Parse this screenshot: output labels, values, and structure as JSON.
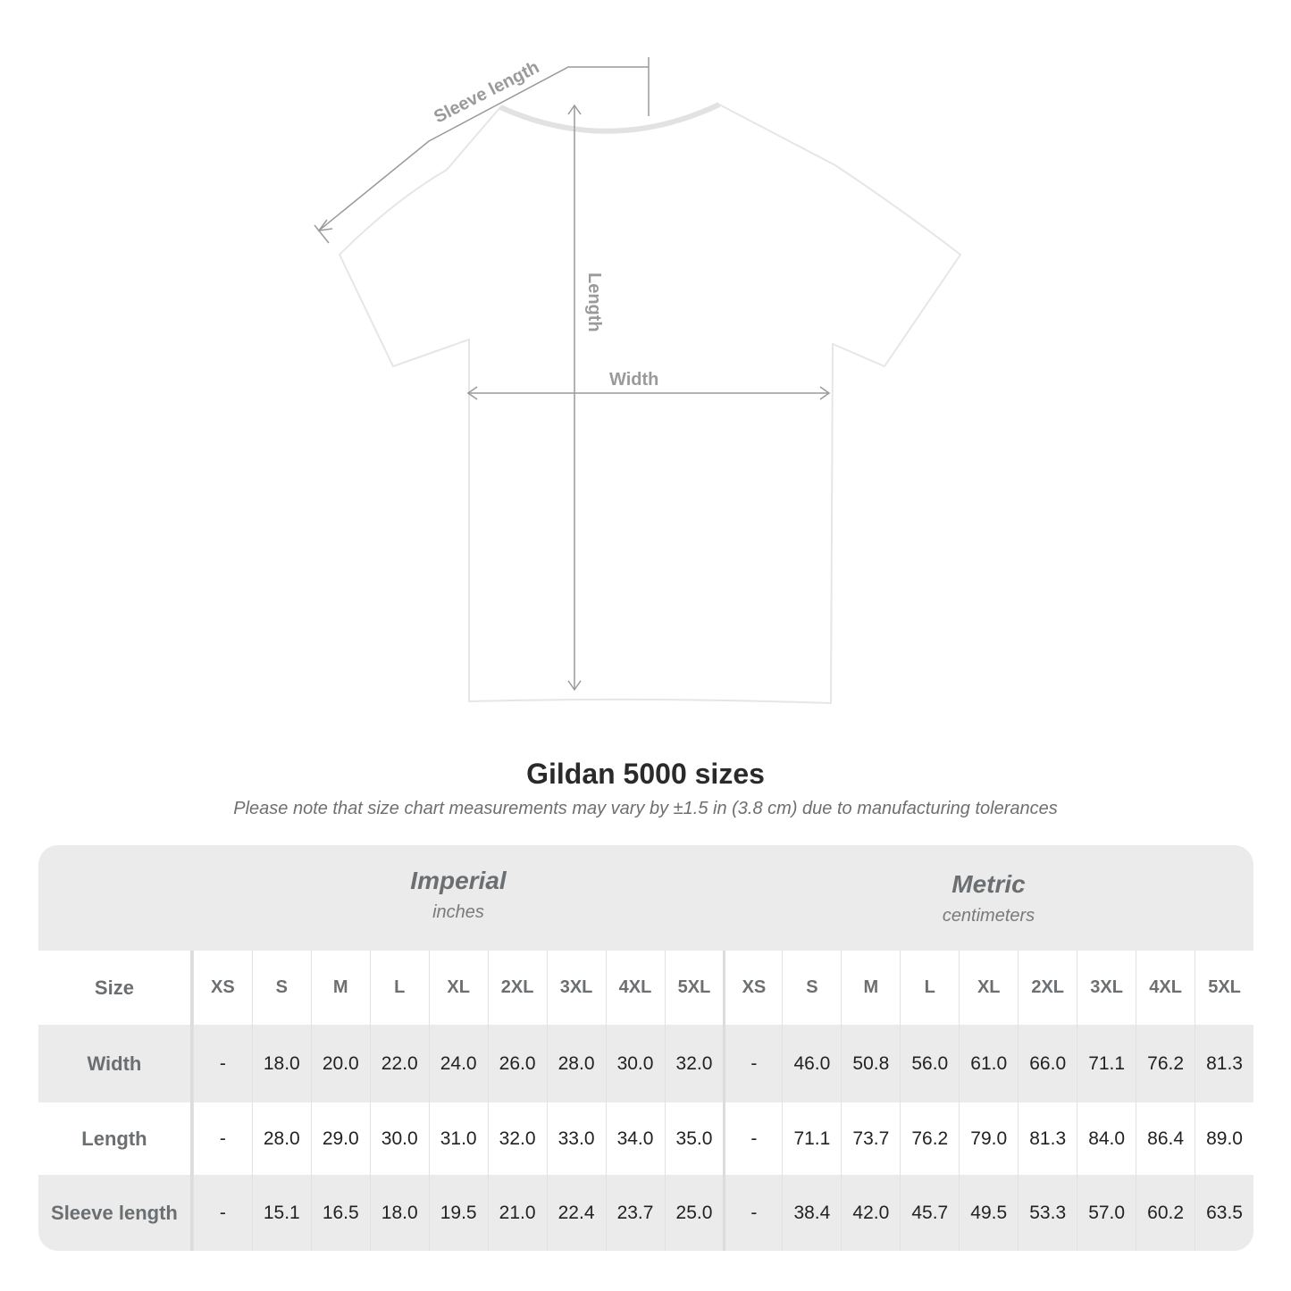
{
  "diagram": {
    "labels": {
      "sleeve": "Sleeve length",
      "length": "Length",
      "width": "Width"
    },
    "shirt_color": "#ffffff",
    "line_color": "#9a9a9a"
  },
  "title": "Gildan 5000 sizes",
  "subtitle": "Please note that size chart measurements may vary by ±1.5 in (3.8 cm) due to manufacturing tolerances",
  "table": {
    "imperial": {
      "name": "Imperial",
      "unit": "inches"
    },
    "metric": {
      "name": "Metric",
      "unit": "centimeters"
    },
    "size_label": "Size",
    "sizes": [
      "XS",
      "S",
      "M",
      "L",
      "XL",
      "2XL",
      "3XL",
      "4XL",
      "5XL"
    ],
    "rows": [
      {
        "label": "Width",
        "imperial": [
          "-",
          "18.0",
          "20.0",
          "22.0",
          "24.0",
          "26.0",
          "28.0",
          "30.0",
          "32.0"
        ],
        "metric": [
          "-",
          "46.0",
          "50.8",
          "56.0",
          "61.0",
          "66.0",
          "71.1",
          "76.2",
          "81.3"
        ]
      },
      {
        "label": "Length",
        "imperial": [
          "-",
          "28.0",
          "29.0",
          "30.0",
          "31.0",
          "32.0",
          "33.0",
          "34.0",
          "35.0"
        ],
        "metric": [
          "-",
          "71.1",
          "73.7",
          "76.2",
          "79.0",
          "81.3",
          "84.0",
          "86.4",
          "89.0"
        ]
      },
      {
        "label": "Sleeve length",
        "imperial": [
          "-",
          "15.1",
          "16.5",
          "18.0",
          "19.5",
          "21.0",
          "22.4",
          "23.7",
          "25.0"
        ],
        "metric": [
          "-",
          "38.4",
          "42.0",
          "45.7",
          "49.5",
          "53.3",
          "57.0",
          "60.2",
          "63.5"
        ]
      }
    ]
  }
}
